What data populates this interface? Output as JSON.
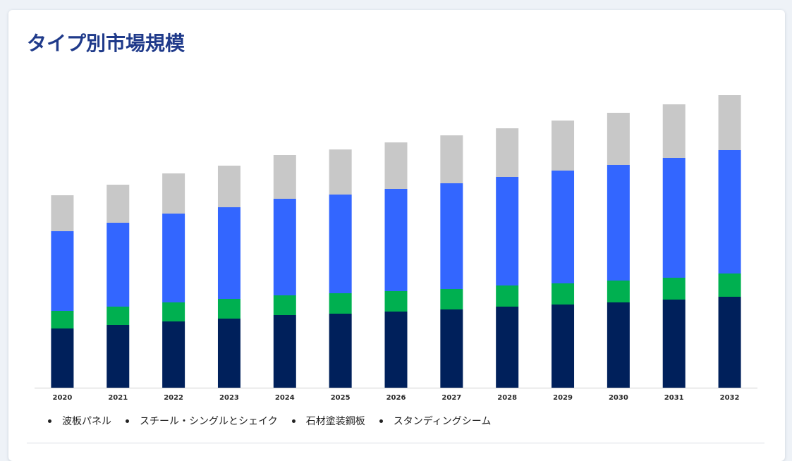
{
  "page": {
    "title": "タイプ別市場規模"
  },
  "legend": {
    "items": [
      {
        "label": "波板パネル"
      },
      {
        "label": "スチール・シングルとシェイク"
      },
      {
        "label": "石材塗装鋼板"
      },
      {
        "label": "スタンディングシーム"
      }
    ]
  },
  "chart_data": {
    "type": "bar",
    "stacked": true,
    "categories": [
      "2020",
      "2021",
      "2022",
      "2023",
      "2024",
      "2025",
      "2026",
      "2027",
      "2028",
      "2029",
      "2030",
      "2031",
      "2032"
    ],
    "series": [
      {
        "color": "#00205b",
        "values": [
          84,
          89,
          94,
          98,
          103,
          105,
          108,
          111,
          115,
          118,
          121,
          125,
          129
        ]
      },
      {
        "color": "#00b050",
        "values": [
          25,
          26,
          27,
          28,
          28,
          29,
          29,
          29,
          30,
          30,
          31,
          31,
          33
        ]
      },
      {
        "color": "#3366ff",
        "values": [
          113,
          119,
          126,
          130,
          137,
          140,
          145,
          150,
          154,
          160,
          164,
          170,
          175
        ]
      },
      {
        "color": "#c8c8c8",
        "values": [
          51,
          54,
          57,
          59,
          62,
          64,
          66,
          68,
          69,
          71,
          74,
          76,
          78
        ]
      }
    ],
    "ylim": [
      0,
      420
    ],
    "grid": false,
    "legend_position": "bottom-left",
    "colors": {
      "axis": "#d0d0d0"
    }
  }
}
